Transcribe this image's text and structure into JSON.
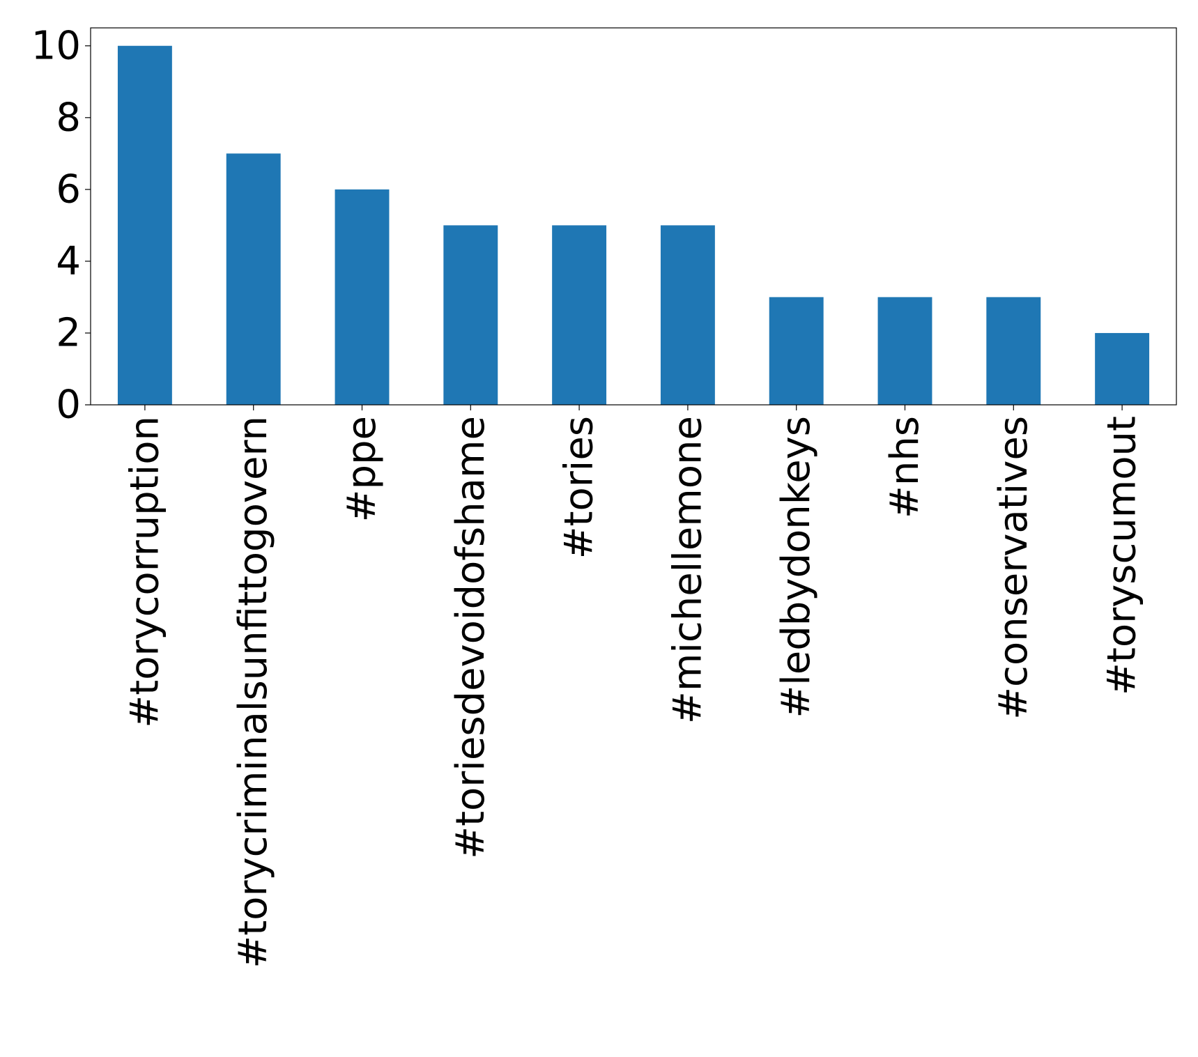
{
  "chart_data": {
    "type": "bar",
    "title": "",
    "xlabel": "",
    "ylabel": "",
    "categories": [
      "#torycorruption",
      "#torycriminalsunfittogovern",
      "#ppe",
      "#toriesdevoidofshame",
      "#tories",
      "#michellemone",
      "#ledbydonkeys",
      "#nhs",
      "#conservatives",
      "#toryscumout"
    ],
    "values": [
      10,
      7,
      6,
      5,
      5,
      5,
      3,
      3,
      3,
      2
    ],
    "ylim": [
      0,
      10.5
    ],
    "yticks": [
      0,
      2,
      4,
      6,
      8,
      10
    ],
    "bar_color": "#1f77b4",
    "grid": false,
    "legend": "none"
  }
}
